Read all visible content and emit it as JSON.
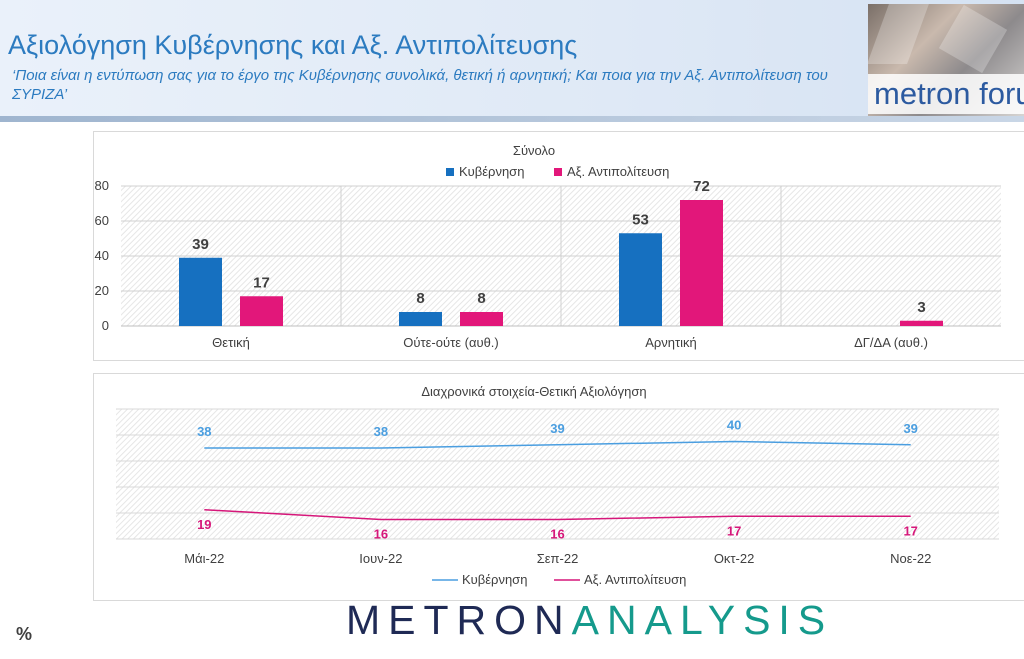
{
  "header": {
    "title": "Αξιολόγηση Κυβέρνησης και Αξ. Αντιπολίτευσης",
    "subtitle": "‘Ποια είναι η εντύπωση σας για το έργο της Κυβέρνησης συνολικά, θετική ή αρνητική; Και ποια για την Αξ. Αντιπολίτευση του ΣΥΡΙΖΑ’",
    "logo_text": "metron forum"
  },
  "footer": {
    "percent_sign": "%",
    "brand_part1": "METRON",
    "brand_part2": "ANALYSIS"
  },
  "colors": {
    "government": "#1670c0",
    "opposition": "#e2177a",
    "line_government": "#4a9ee0",
    "line_opposition": "#d6177a"
  },
  "chart_data": [
    {
      "type": "bar",
      "title": "Σύνολο",
      "categories": [
        "Θετική",
        "Ούτε-ούτε (αυθ.)",
        "Αρνητική",
        "ΔΓ/ΔΑ (αυθ.)"
      ],
      "series": [
        {
          "name": "Κυβέρνηση",
          "values": [
            39,
            8,
            53,
            null
          ]
        },
        {
          "name": "Αξ. Αντιπολίτευση",
          "values": [
            17,
            8,
            72,
            3
          ]
        }
      ],
      "y_ticks": [
        0,
        20,
        40,
        60,
        80
      ],
      "ylim": [
        0,
        80
      ],
      "legend": "top",
      "grid": true
    },
    {
      "type": "line",
      "title": "Διαχρονικά στοιχεία-Θετική Αξιολόγηση",
      "categories": [
        "Μάι-22",
        "Ιουν-22",
        "Σεπ-22",
        "Οκτ-22",
        "Νοε-22"
      ],
      "series": [
        {
          "name": "Κυβέρνηση",
          "values": [
            38,
            38,
            39,
            40,
            39
          ]
        },
        {
          "name": "Αξ. Αντιπολίτευση",
          "values": [
            19,
            16,
            16,
            17,
            17
          ]
        }
      ],
      "legend": "bottom",
      "grid": true
    }
  ]
}
